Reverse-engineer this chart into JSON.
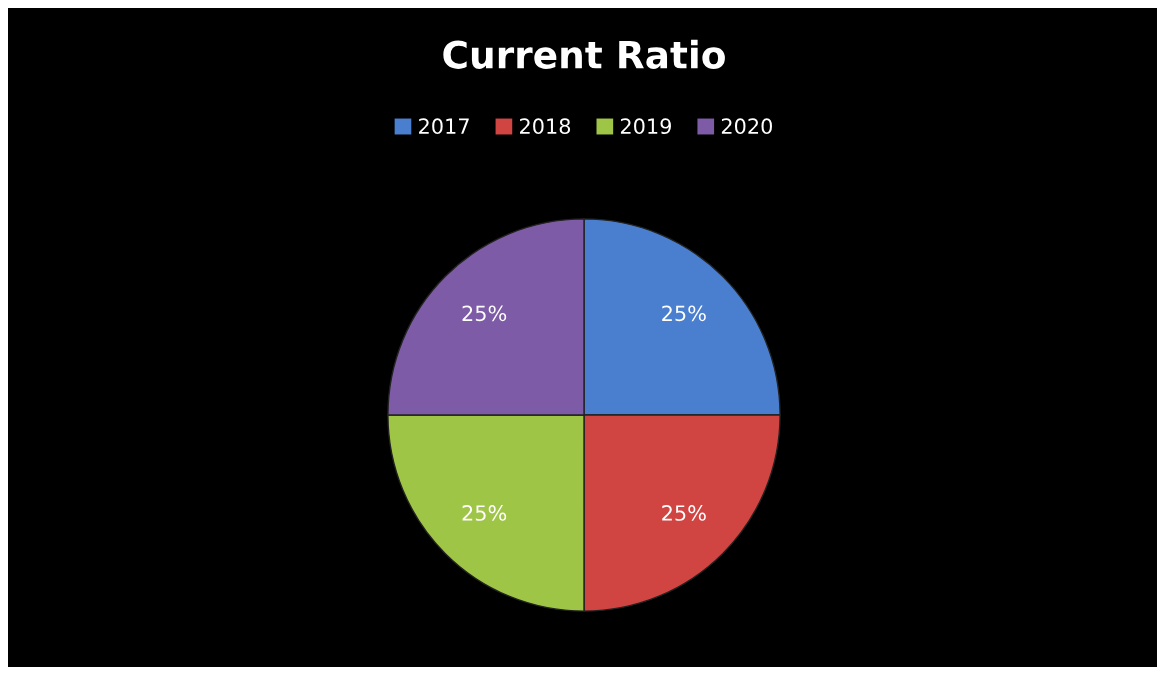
{
  "chart_data": {
    "type": "pie",
    "title": "Current Ratio",
    "categories": [
      "2017",
      "2018",
      "2019",
      "2020"
    ],
    "values": [
      25,
      25,
      25,
      25
    ],
    "value_labels": [
      "25%",
      "25%",
      "25%",
      "25%"
    ],
    "colors": [
      "#4a7fcf",
      "#d04442",
      "#9fc547",
      "#7d5ba6"
    ],
    "legend": "top"
  }
}
